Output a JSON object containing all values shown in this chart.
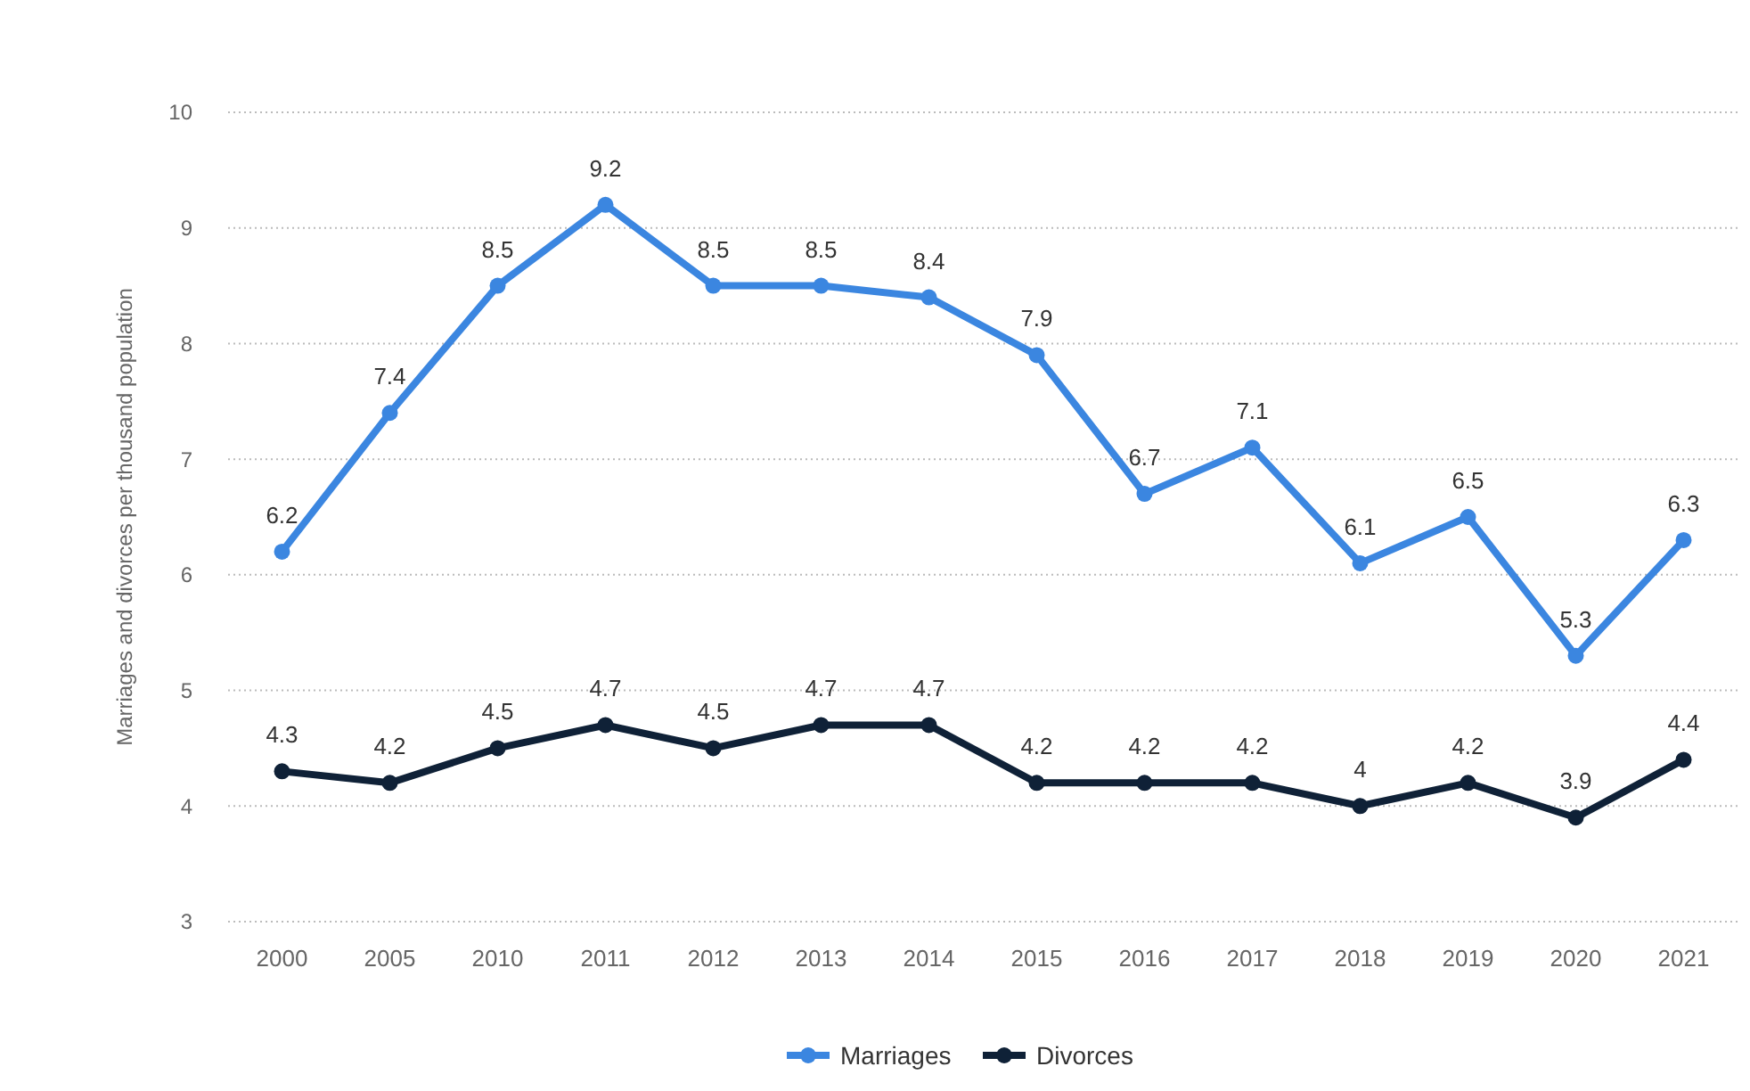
{
  "chart_data": {
    "type": "line",
    "ylabel": "Marriages and divorces per thousand population",
    "categories": [
      "2000",
      "2005",
      "2010",
      "2011",
      "2012",
      "2013",
      "2014",
      "2015",
      "2016",
      "2017",
      "2018",
      "2019",
      "2020",
      "2021"
    ],
    "series": [
      {
        "name": "Marriages",
        "color": "#3b86e0",
        "values": [
          6.2,
          7.4,
          8.5,
          9.2,
          8.5,
          8.5,
          8.4,
          7.9,
          6.7,
          7.1,
          6.1,
          6.5,
          5.3,
          6.3
        ]
      },
      {
        "name": "Divorces",
        "color": "#0f2137",
        "values": [
          4.3,
          4.2,
          4.5,
          4.7,
          4.5,
          4.7,
          4.7,
          4.2,
          4.2,
          4.2,
          4,
          4.2,
          3.9,
          4.4
        ]
      }
    ],
    "ylim": [
      3,
      10
    ],
    "yticks": [
      3,
      4,
      5,
      6,
      7,
      8,
      9,
      10
    ],
    "grid": "y",
    "legend": "bottom",
    "marker": "circle",
    "line_style": "solid",
    "data_labels": true
  }
}
